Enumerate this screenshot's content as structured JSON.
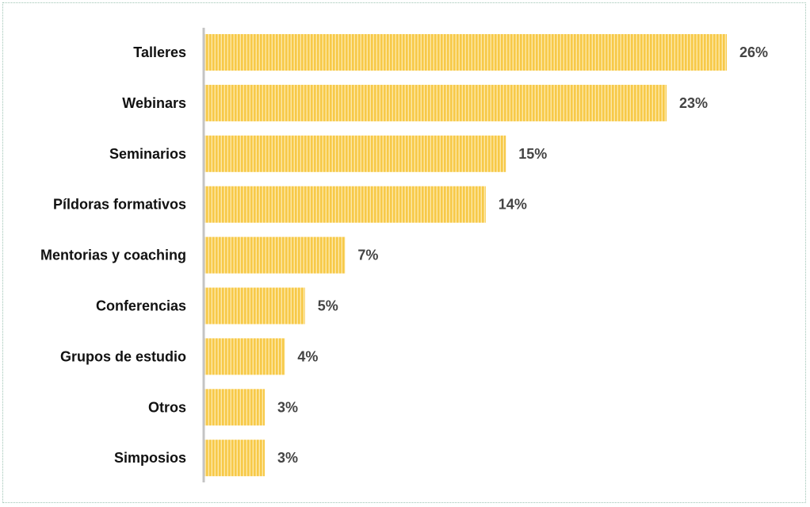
{
  "chart_data": {
    "type": "bar",
    "orientation": "horizontal",
    "categories": [
      "Talleres",
      "Webinars",
      "Seminarios",
      "Píldoras formativos",
      "Mentorias y coaching",
      "Conferencias",
      "Grupos de estudio",
      "Otros",
      "Simposios"
    ],
    "values": [
      26,
      23,
      15,
      14,
      7,
      5,
      4,
      3,
      3
    ],
    "value_labels": [
      "26%",
      "23%",
      "15%",
      "14%",
      "7%",
      "5%",
      "4%",
      "3%",
      "3%"
    ],
    "unit": "%",
    "title": "",
    "xlabel": "",
    "ylabel": "",
    "xlim": [
      0,
      26
    ],
    "grid": false,
    "legend": "none",
    "bar_color": "#f7c948",
    "bar_stripe_color": "#fde8a8",
    "axis_color": "#c4c4c4",
    "frame_border_color": "#9ec4b4"
  }
}
